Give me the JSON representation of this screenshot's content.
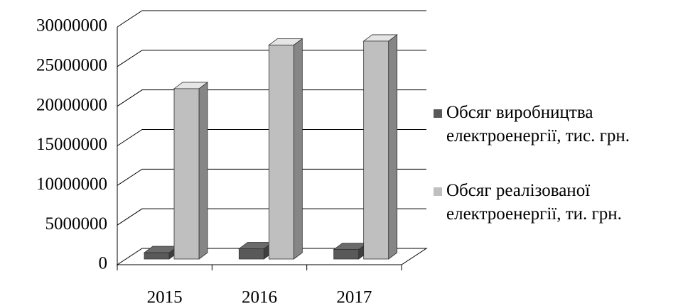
{
  "chart_data": {
    "type": "bar3d",
    "categories": [
      "2015",
      "2016",
      "2017"
    ],
    "series": [
      {
        "name": "Обсяг виробництва електроенергії, тис. грн.",
        "color": "#595959",
        "values": [
          800000,
          1300000,
          1200000
        ]
      },
      {
        "name": "Обсяг реалізованої електроенергії, ти. грн.",
        "color": "#bfbfbf",
        "values": [
          21500000,
          27000000,
          27500000
        ]
      }
    ],
    "ylim": [
      0,
      30000000
    ],
    "yticks": [
      0,
      5000000,
      10000000,
      15000000,
      20000000,
      25000000,
      30000000
    ],
    "grid": true,
    "legend": "right"
  }
}
